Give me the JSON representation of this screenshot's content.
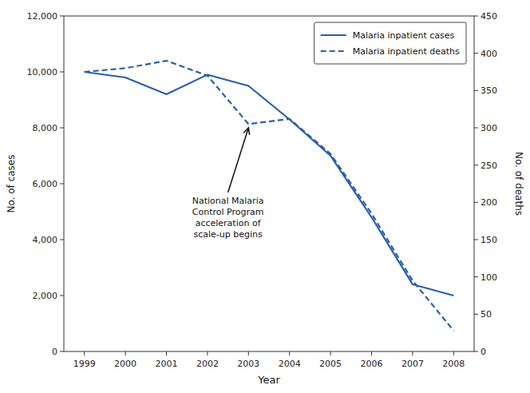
{
  "chart_data": {
    "type": "line",
    "x": [
      1999,
      2000,
      2001,
      2002,
      2003,
      2004,
      2005,
      2006,
      2007,
      2008
    ],
    "xlim": [
      1998.5,
      2008.5
    ],
    "xticks": [
      1999,
      2000,
      2001,
      2002,
      2003,
      2004,
      2005,
      2006,
      2007,
      2008
    ],
    "xlabel": "Year",
    "ylabel": "No. of cases",
    "y2label": "No. of deaths",
    "ylim": [
      0,
      12000
    ],
    "yticks": [
      0,
      {
        "value": 2000,
        "label": "2,000"
      },
      {
        "value": 4000,
        "label": "4,000"
      },
      {
        "value": 6000,
        "label": "6,000"
      },
      {
        "value": 8000,
        "label": "8,000"
      },
      {
        "value": 10000,
        "label": "10,000"
      },
      {
        "value": 12000,
        "label": "12,000"
      }
    ],
    "y2lim": [
      0,
      450
    ],
    "y2ticks": [
      0,
      50,
      100,
      150,
      200,
      250,
      300,
      350,
      400,
      450
    ],
    "series": [
      {
        "name": "Malaria inpatient cases",
        "color": "#2B5FA8",
        "line_style": "solid",
        "values": [
          10000,
          9800,
          9200,
          9900,
          9500,
          8300,
          7000,
          4800,
          2400,
          2000
        ]
      },
      {
        "name": "Malaria inpatient deaths",
        "color": "#2B5FA8",
        "line_style": "dashed",
        "axis": "y2",
        "values": [
          375,
          380,
          390,
          370,
          305,
          312,
          265,
          185,
          95,
          28
        ]
      }
    ],
    "annotations": [
      {
        "text": "National Malaria\nControl Program\nacceleration of\nscale-up begins",
        "x": 2002.5,
        "y": 5600,
        "arrow_x": 2003,
        "arrow_y": 8000
      }
    ],
    "legend": "upper right",
    "grid": false
  }
}
